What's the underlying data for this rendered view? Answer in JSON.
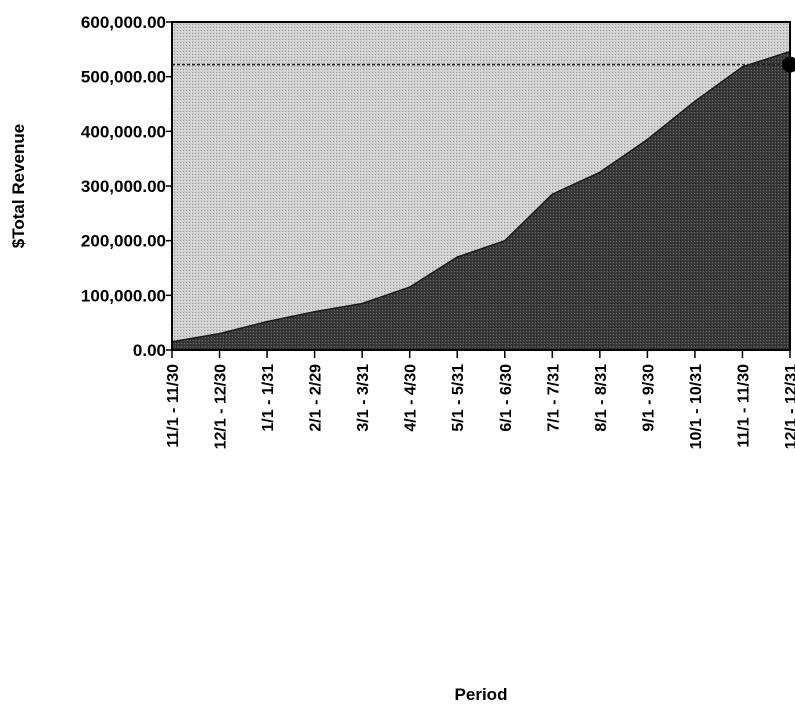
{
  "chart_data": {
    "type": "area",
    "xlabel": "Period",
    "ylabel": "$Total Revenue",
    "ylim": [
      0,
      600000
    ],
    "yticks": [
      "0.00",
      "100,000.00",
      "200,000.00",
      "300,000.00",
      "400,000.00",
      "500,000.00",
      "600,000.00"
    ],
    "categories": [
      "11/1 - 11/30",
      "12/1 - 12/30",
      "1/1 - 1/31",
      "2/1 - 2/29",
      "3/1 - 3/31",
      "4/1 - 4/30",
      "5/1 - 5/31",
      "6/1 - 6/30",
      "7/1 - 7/31",
      "8/1 - 8/31",
      "9/1 - 9/30",
      "10/1 - 10/31",
      "11/1 - 11/30",
      "12/1 - 12/31"
    ],
    "series": [
      {
        "values": [
          15000,
          30000,
          52000,
          70000,
          85000,
          115000,
          170000,
          200000,
          285000,
          325000,
          385000,
          455000,
          518000,
          546000
        ]
      }
    ],
    "reference_line": {
      "value": 522000,
      "style": "dashed"
    },
    "end_marker": {
      "value": 522000
    },
    "grid": false,
    "legend": "none",
    "colors": {
      "area_fill": "#3c3c3c",
      "plot_background": "#c8c8c8",
      "reference_line": "#222222"
    }
  }
}
